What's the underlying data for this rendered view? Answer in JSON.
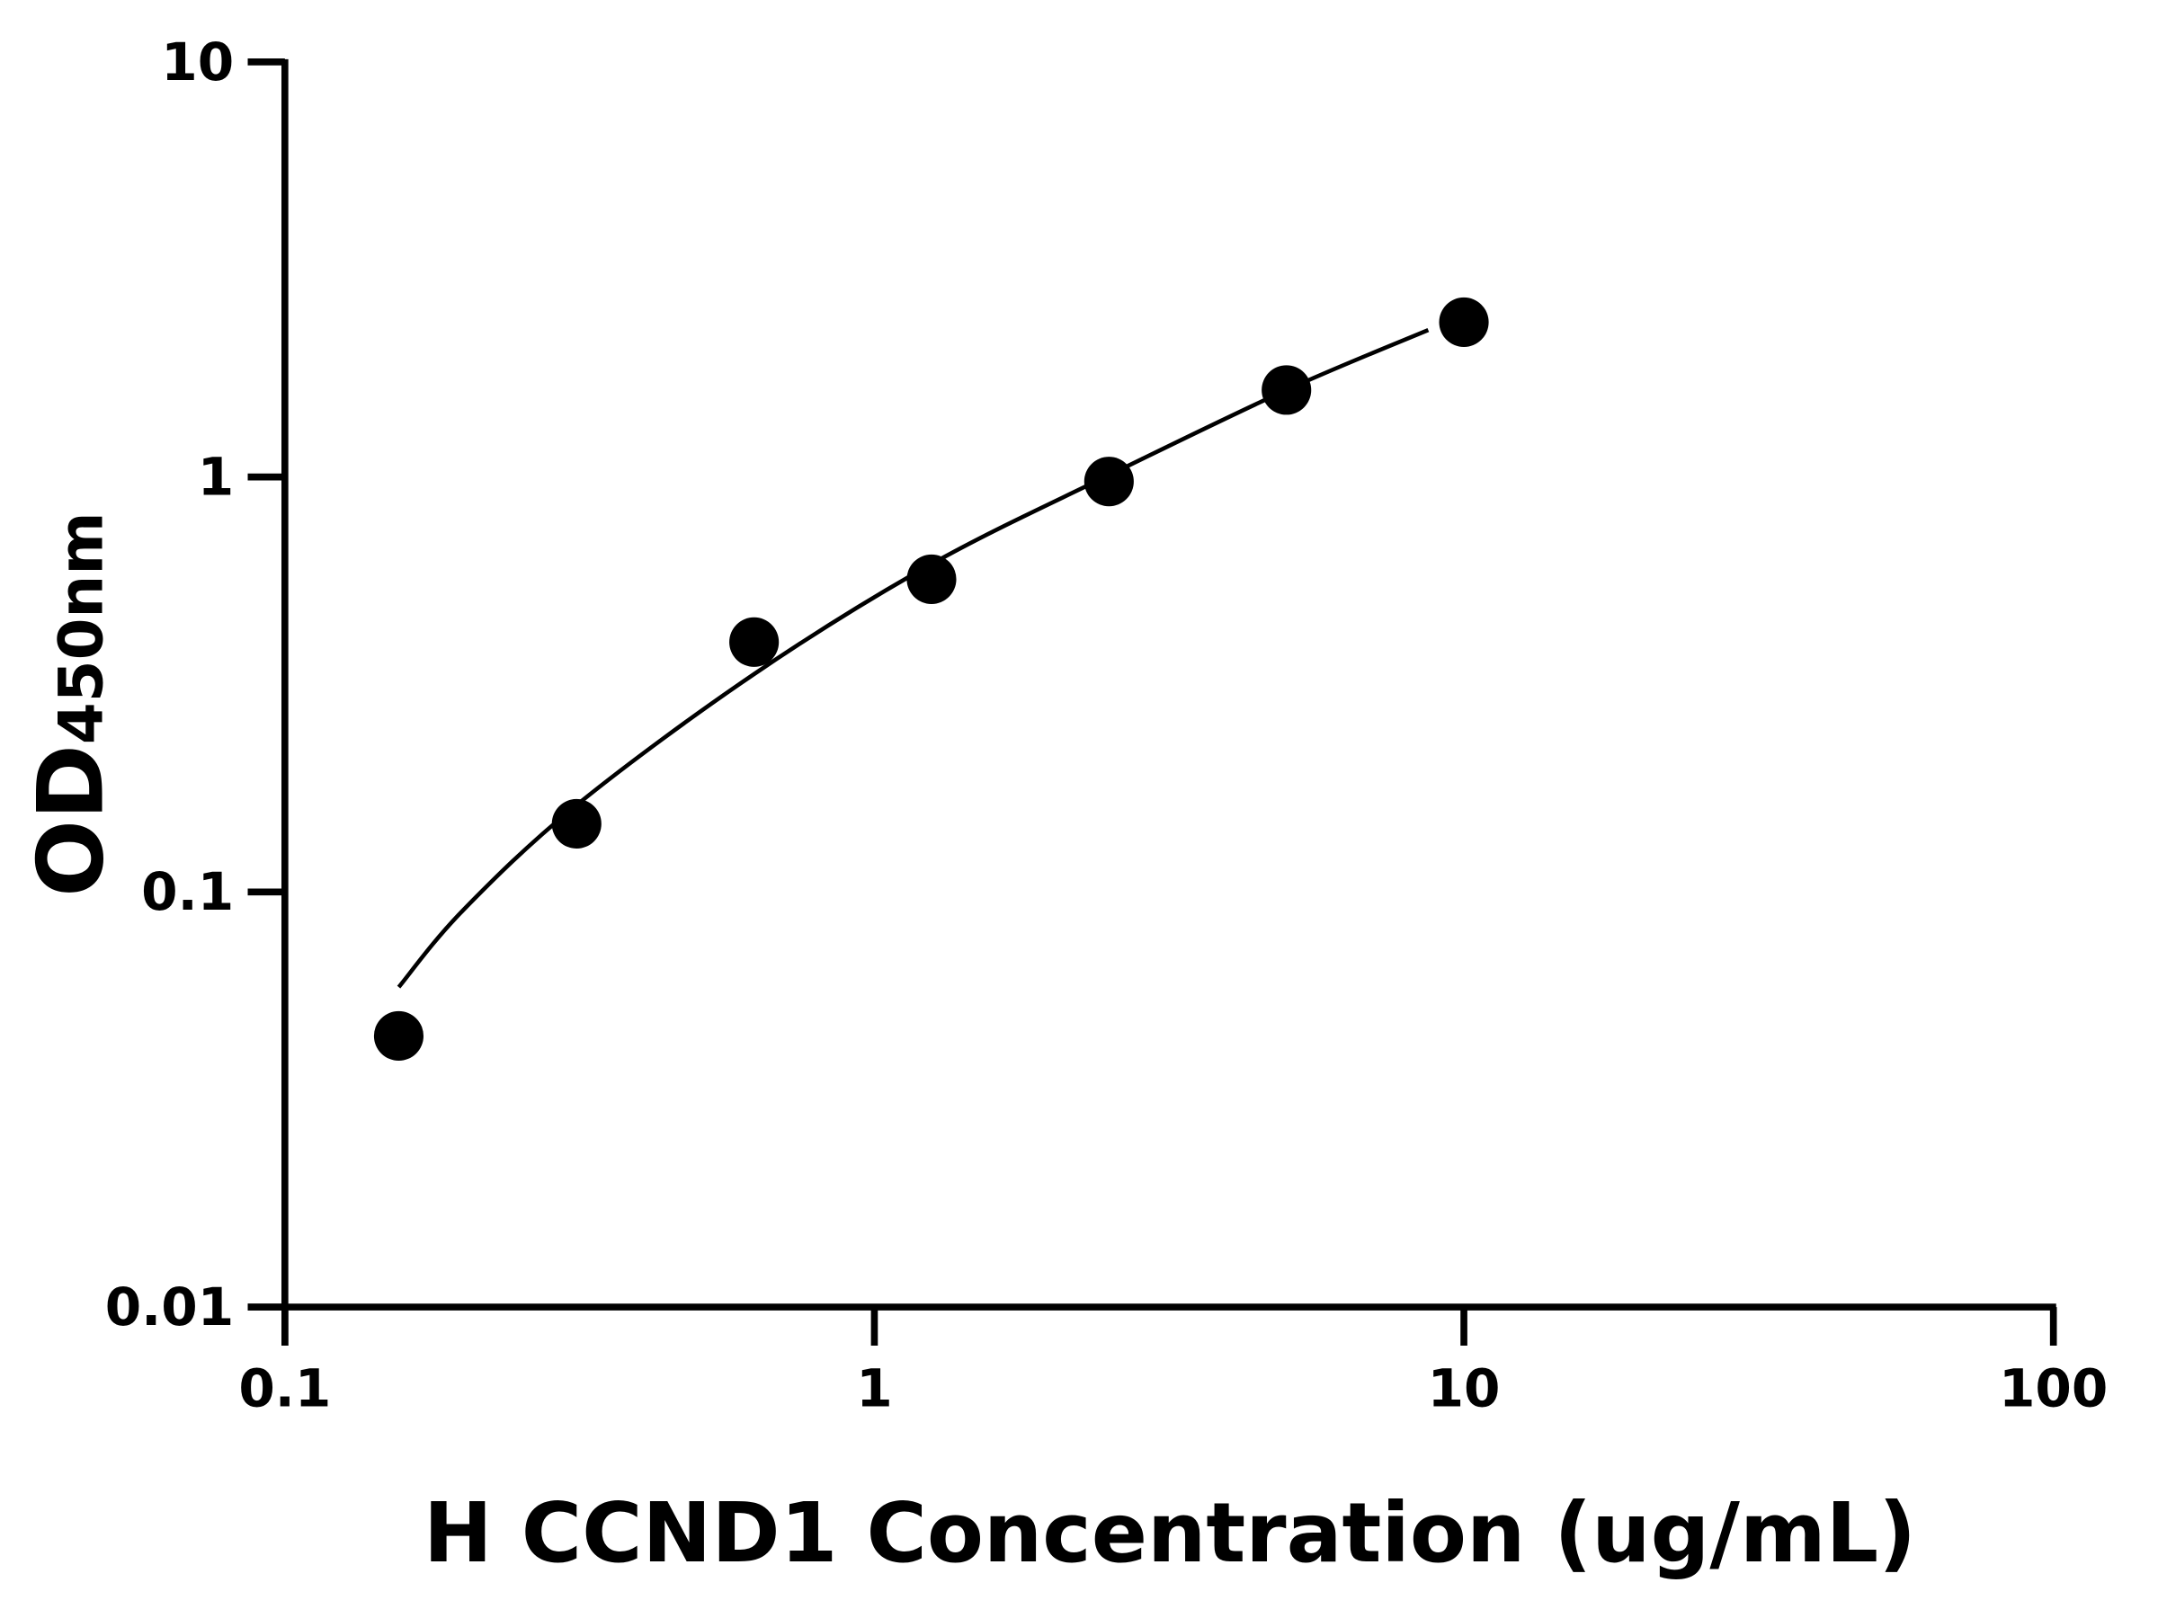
{
  "chart_data": {
    "type": "scatter",
    "title": "",
    "xlabel": "H CCND1 Concentration (ug/mL)",
    "ylabel_main": "OD",
    "ylabel_sub": "450nm",
    "xscale": "log",
    "yscale": "log",
    "xlim": [
      0.1,
      100
    ],
    "ylim": [
      0.01,
      10
    ],
    "xticks": [
      {
        "value": 0.1,
        "label": "0.1"
      },
      {
        "value": 1,
        "label": "1"
      },
      {
        "value": 10,
        "label": "10"
      },
      {
        "value": 100,
        "label": "100"
      }
    ],
    "yticks": [
      {
        "value": 0.01,
        "label": "0.01"
      },
      {
        "value": 0.1,
        "label": "0.1"
      },
      {
        "value": 1,
        "label": "1"
      },
      {
        "value": 10,
        "label": "10"
      }
    ],
    "grid": false,
    "points": [
      {
        "x": 0.156,
        "y": 0.045
      },
      {
        "x": 0.3125,
        "y": 0.146
      },
      {
        "x": 0.625,
        "y": 0.4
      },
      {
        "x": 1.25,
        "y": 0.567
      },
      {
        "x": 2.5,
        "y": 0.975
      },
      {
        "x": 5,
        "y": 1.62
      },
      {
        "x": 10,
        "y": 2.36
      }
    ],
    "fit_curve": [
      {
        "x": 0.156,
        "y": 0.059
      },
      {
        "x": 0.2,
        "y": 0.09
      },
      {
        "x": 0.3125,
        "y": 0.162
      },
      {
        "x": 0.625,
        "y": 0.335
      },
      {
        "x": 1.25,
        "y": 0.617
      },
      {
        "x": 2.5,
        "y": 1.01
      },
      {
        "x": 5,
        "y": 1.62
      },
      {
        "x": 8.7,
        "y": 2.26
      }
    ],
    "colors": {
      "points": "#000000",
      "curve": "#000000",
      "axes": "#000000"
    }
  }
}
